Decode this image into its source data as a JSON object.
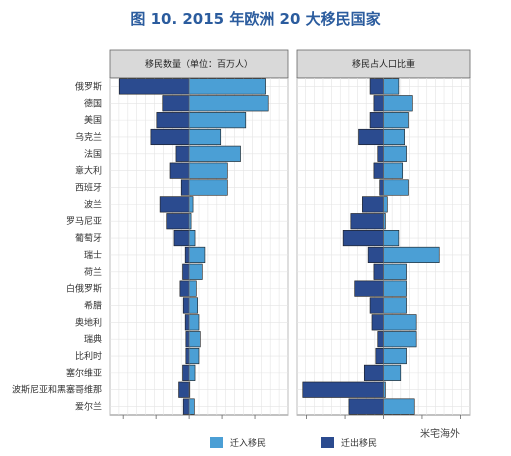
{
  "title": "图 10. 2015 年欧洲 20 大移民国家",
  "watermark": "米宅海外",
  "colors": {
    "immigrant": "#4b9fd5",
    "emigrant": "#2b4b8f"
  },
  "chart_data": {
    "type": "bar",
    "categories": [
      "俄罗斯",
      "德国",
      "美国",
      "乌克兰",
      "法国",
      "意大利",
      "西班牙",
      "波兰",
      "罗马尼亚",
      "葡萄牙",
      "瑞士",
      "荷兰",
      "白俄罗斯",
      "希腊",
      "奥地利",
      "瑞典",
      "比利时",
      "塞尔维亚",
      "波斯尼亚和黑塞哥维那",
      "爱尔兰"
    ],
    "panels": [
      {
        "title": "移民数量（单位：百万人）",
        "xlim": [
          -12,
          15
        ],
        "series": [
          {
            "name": "迁入移民",
            "values": [
              11.6,
              12.0,
              8.6,
              4.8,
              7.8,
              5.8,
              5.8,
              0.6,
              0.3,
              0.9,
              2.4,
              2.0,
              1.1,
              1.3,
              1.5,
              1.7,
              1.5,
              0.9,
              0.1,
              0.8
            ]
          },
          {
            "name": "迁出移民",
            "values": [
              -10.6,
              -4.0,
              -4.9,
              -5.8,
              -2.0,
              -2.9,
              -1.2,
              -4.4,
              -3.4,
              -2.3,
              -0.6,
              -1.0,
              -1.4,
              -0.9,
              -0.6,
              -0.5,
              -0.5,
              -1.0,
              -1.6,
              -0.9
            ]
          }
        ]
      },
      {
        "title": "移民占人口比重",
        "xlim": [
          -45,
          45
        ],
        "series": [
          {
            "name": "迁入移民",
            "values": [
              8,
              15,
              13,
              11,
              12,
              10,
              13,
              2,
              1,
              8,
              29,
              12,
              12,
              12,
              17,
              17,
              12,
              9,
              1,
              16
            ]
          },
          {
            "name": "迁出移民",
            "values": [
              -7,
              -5,
              -7,
              -13,
              -3,
              -5,
              -2,
              -11,
              -17,
              -21,
              -8,
              -5,
              -15,
              -7,
              -6,
              -3,
              -4,
              -10,
              -42,
              -18
            ]
          }
        ]
      }
    ],
    "legend": [
      "迁入移民",
      "迁出移民"
    ],
    "legend_position": "bottom",
    "grid": true
  }
}
